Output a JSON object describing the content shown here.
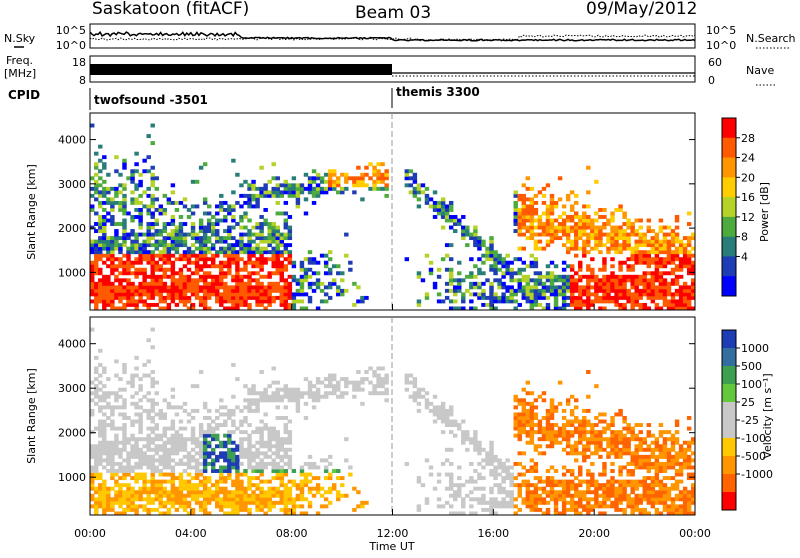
{
  "header": {
    "station": "Saskatoon (fitACF)",
    "beam": "Beam 03",
    "date": "09/May/2012"
  },
  "noise_panel": {
    "left_label": "N.Sky",
    "right_label": "N.Search",
    "ticks": [
      "10^5",
      "10^0"
    ]
  },
  "freq_panel": {
    "left_label_top": "Freq.",
    "left_label_bottom": "[MHz]",
    "left_ticks": [
      "18",
      "8"
    ],
    "right_ticks": [
      "60",
      "0"
    ],
    "right_label": "Nave"
  },
  "cpid_panel": {
    "label": "CPID",
    "segments": [
      {
        "name": "twofsound -3501",
        "start_hour": 0
      },
      {
        "name": "themis 3300",
        "start_hour": 12
      }
    ]
  },
  "chart_data": [
    {
      "type": "heatmap",
      "parameter": "power",
      "ylabel": "Slant Range [km]",
      "yticks": [
        1000,
        2000,
        3000,
        4000
      ],
      "ylim": [
        150,
        4600
      ],
      "xlim": [
        0,
        24
      ],
      "colorbar": {
        "label": "Power [dB]",
        "ticks": [
          "28",
          "24",
          "20",
          "16",
          "12",
          "8",
          "4"
        ],
        "colors": [
          "#ff0000",
          "#ff5a00",
          "#ff9600",
          "#ffcd00",
          "#b4d228",
          "#4cab3c",
          "#287d78",
          "#1e3cb4",
          "#0000ff"
        ]
      }
    },
    {
      "type": "heatmap",
      "parameter": "velocity",
      "ylabel": "Slant Range [km]",
      "yticks": [
        1000,
        2000,
        3000,
        4000
      ],
      "ylim": [
        150,
        4600
      ],
      "xlim": [
        0,
        24
      ],
      "xlabel": "Time UT",
      "xticks": [
        "00:00",
        "04:00",
        "08:00",
        "12:00",
        "16:00",
        "20:00",
        "00:00"
      ],
      "colorbar": {
        "label": "Velocity [m s⁻¹]",
        "ticks": [
          "1000",
          "500",
          "100",
          "25",
          "-25",
          "-100",
          "-500",
          "-1000"
        ],
        "colors": [
          "#1e3cb4",
          "#326ea0",
          "#3ca050",
          "#64c83c",
          "#c8c8c8",
          "#c8c8c8",
          "#ffc800",
          "#ff9600",
          "#ff6400",
          "#ff0000"
        ]
      }
    }
  ]
}
